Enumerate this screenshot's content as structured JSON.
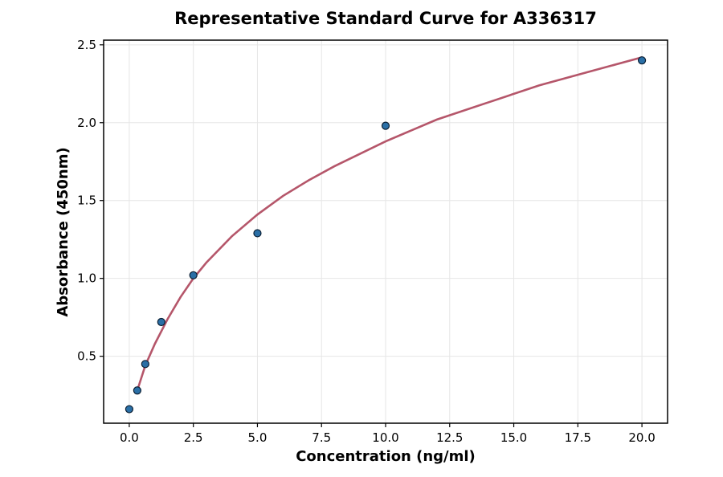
{
  "colors": {
    "point_fill": "#2a6fa6",
    "point_edge": "#0b1f33",
    "curve": "#b5566a",
    "grid": "#e6e6e6"
  },
  "chart_data": {
    "type": "scatter",
    "title": "Representative Standard Curve for A336317",
    "xlabel": "Concentration (ng/ml)",
    "ylabel": "Absorbance (450nm)",
    "xlim": [
      -1.0,
      21.0
    ],
    "ylim": [
      0.07,
      2.53
    ],
    "xticks": [
      0.0,
      2.5,
      5.0,
      7.5,
      10.0,
      12.5,
      15.0,
      17.5,
      20.0
    ],
    "xtick_labels": [
      "0.0",
      "2.5",
      "5.0",
      "7.5",
      "10.0",
      "12.5",
      "15.0",
      "17.5",
      "20.0"
    ],
    "yticks": [
      0.5,
      1.0,
      1.5,
      2.0,
      2.5
    ],
    "ytick_labels": [
      "0.5",
      "1.0",
      "1.5",
      "2.0",
      "2.5"
    ],
    "grid": true,
    "series": [
      {
        "kind": "points",
        "x": [
          0.0,
          0.3125,
          0.625,
          1.25,
          2.5,
          5.0,
          10.0,
          20.0
        ],
        "y": [
          0.16,
          0.28,
          0.45,
          0.72,
          1.02,
          1.29,
          1.98,
          2.4
        ]
      },
      {
        "kind": "fitted-curve",
        "x": [
          0.3125,
          0.625,
          1.0,
          1.5,
          2.0,
          2.5,
          3.0,
          4.0,
          5.0,
          6.0,
          7.0,
          8.0,
          9.0,
          10.0,
          12.0,
          14.0,
          16.0,
          18.0,
          20.0
        ],
        "y": [
          0.28,
          0.44,
          0.58,
          0.74,
          0.88,
          1.0,
          1.1,
          1.27,
          1.41,
          1.53,
          1.63,
          1.72,
          1.8,
          1.88,
          2.02,
          2.13,
          2.24,
          2.33,
          2.42
        ]
      }
    ]
  }
}
